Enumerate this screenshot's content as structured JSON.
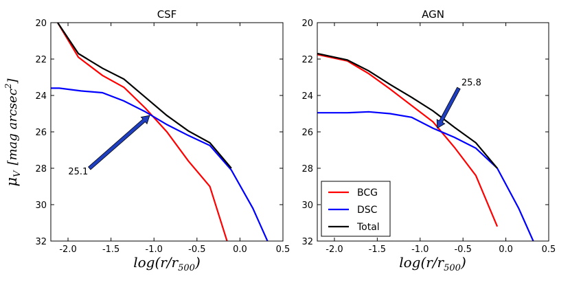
{
  "ylabel_symbol": "μ",
  "ylabel_sub": "V",
  "ylabel_unit": "[mag arcsec",
  "ylabel_sup": "2",
  "ylabel_close": "]",
  "xlabel_main": "log(r/r",
  "xlabel_sub": "500",
  "xlabel_close": ")",
  "legend": {
    "placement": "lower-left of right panel",
    "entries": [
      "BCG",
      "DSC",
      "Total"
    ]
  },
  "colors": {
    "BCG": "#ff0000",
    "DSC": "#0000ff",
    "Total": "#000000",
    "arrow": "#1f3fbf"
  },
  "chart_data": [
    {
      "type": "line",
      "title": "CSF",
      "xlabel": "log(r/r500)",
      "ylabel": "μV [mag arcsec2]",
      "xlim": [
        -2.2,
        0.5
      ],
      "ylim": [
        32,
        20
      ],
      "y_inverted": true,
      "xticks": [
        "-2.0",
        "-1.5",
        "-1.0",
        "-0.5",
        "0.0",
        "0.5"
      ],
      "xtick_values": [
        -2.0,
        -1.5,
        -1.0,
        -0.5,
        0.0,
        0.5
      ],
      "yticks": [
        "20",
        "22",
        "24",
        "26",
        "28",
        "30",
        "32"
      ],
      "ytick_values": [
        20,
        22,
        24,
        26,
        28,
        30,
        32
      ],
      "series": [
        {
          "name": "BCG",
          "x": [
            -2.12,
            -1.88,
            -1.6,
            -1.35,
            -1.1,
            -0.85,
            -0.6,
            -0.35,
            -0.15
          ],
          "y": [
            20.0,
            21.9,
            22.9,
            23.55,
            24.7,
            26.0,
            27.6,
            29.0,
            32.0
          ]
        },
        {
          "name": "DSC",
          "x": [
            -2.2,
            -2.1,
            -1.85,
            -1.6,
            -1.35,
            -1.1,
            -0.85,
            -0.6,
            -0.35,
            -0.1,
            0.15,
            0.32
          ],
          "y": [
            23.6,
            23.6,
            23.75,
            23.85,
            24.3,
            24.9,
            25.6,
            26.2,
            26.75,
            28.1,
            30.2,
            32.0
          ]
        },
        {
          "name": "Total",
          "x": [
            -2.12,
            -1.88,
            -1.6,
            -1.35,
            -1.1,
            -0.85,
            -0.6,
            -0.35,
            -0.1
          ],
          "y": [
            20.0,
            21.7,
            22.5,
            23.1,
            24.1,
            25.1,
            25.95,
            26.6,
            28.0
          ]
        }
      ],
      "annotation": {
        "text": "25.1",
        "xy": [
          -1.05,
          25.1
        ],
        "xytext": [
          -1.75,
          28.0
        ]
      }
    },
    {
      "type": "line",
      "title": "AGN",
      "xlabel": "log(r/r500)",
      "ylabel": "",
      "xlim": [
        -2.2,
        0.5
      ],
      "ylim": [
        32,
        20
      ],
      "y_inverted": true,
      "xticks": [
        "-2.0",
        "-1.5",
        "-1.0",
        "-0.5",
        "0.0",
        "0.5"
      ],
      "xtick_values": [
        -2.0,
        -1.5,
        -1.0,
        -0.5,
        0.0,
        0.5
      ],
      "yticks": [
        "20",
        "22",
        "24",
        "26",
        "28",
        "30",
        "32"
      ],
      "ytick_values": [
        20,
        22,
        24,
        26,
        28,
        30,
        32
      ],
      "series": [
        {
          "name": "BCG",
          "x": [
            -2.2,
            -1.85,
            -1.6,
            -1.35,
            -1.1,
            -0.85,
            -0.6,
            -0.35,
            -0.1
          ],
          "y": [
            21.75,
            22.1,
            22.8,
            23.65,
            24.55,
            25.45,
            26.85,
            28.4,
            31.2
          ]
        },
        {
          "name": "DSC",
          "x": [
            -2.2,
            -1.85,
            -1.6,
            -1.35,
            -1.1,
            -0.85,
            -0.6,
            -0.35,
            -0.1,
            0.15,
            0.32
          ],
          "y": [
            24.95,
            24.95,
            24.9,
            25.0,
            25.2,
            25.8,
            26.3,
            26.9,
            28.0,
            30.2,
            32.0
          ]
        },
        {
          "name": "Total",
          "x": [
            -2.2,
            -1.85,
            -1.6,
            -1.35,
            -1.1,
            -0.85,
            -0.6,
            -0.35,
            -0.1
          ],
          "y": [
            21.7,
            22.05,
            22.65,
            23.4,
            24.1,
            24.85,
            25.75,
            26.6,
            28.0
          ]
        }
      ],
      "annotation": {
        "text": "25.8",
        "xy": [
          -0.8,
          25.8
        ],
        "xytext": [
          -0.55,
          23.6
        ]
      }
    }
  ]
}
